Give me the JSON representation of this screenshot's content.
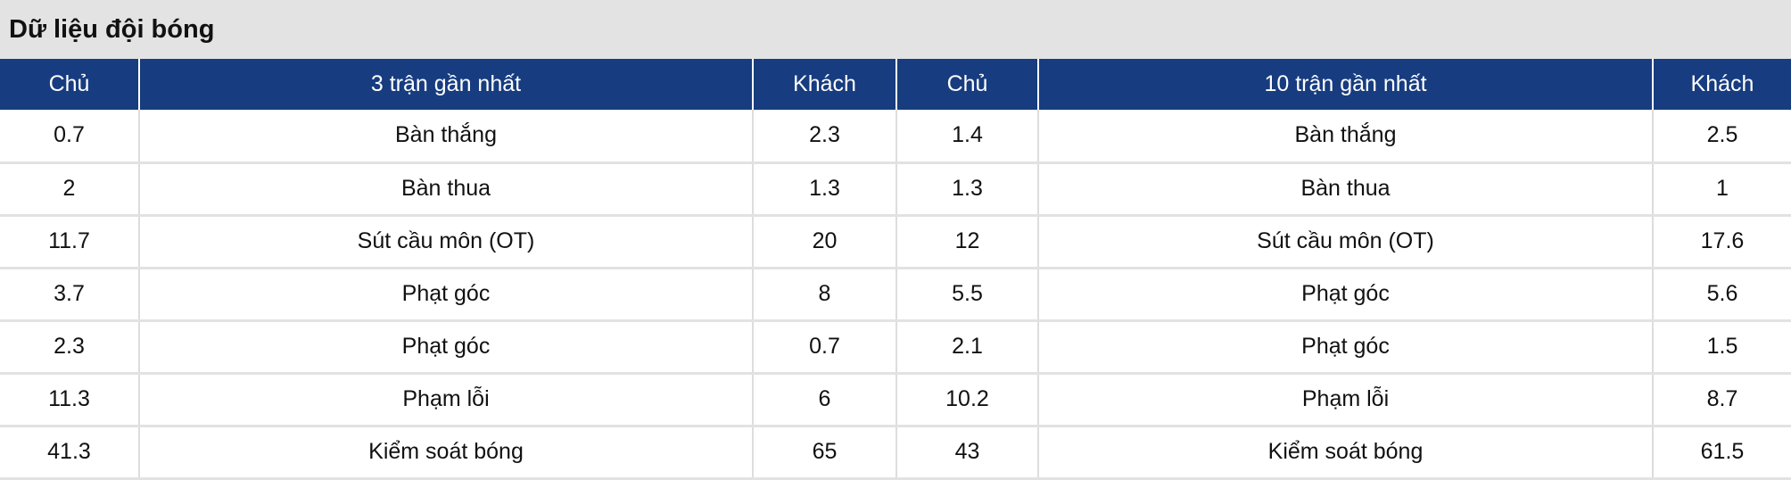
{
  "title": "Dữ liệu đội bóng",
  "headers": [
    "Chủ",
    "3 trận gần nhất",
    "Khách",
    "Chủ",
    "10 trận gần nhất",
    "Khách"
  ],
  "rows": [
    [
      "0.7",
      "Bàn thắng",
      "2.3",
      "1.4",
      "Bàn thắng",
      "2.5"
    ],
    [
      "2",
      "Bàn thua",
      "1.3",
      "1.3",
      "Bàn thua",
      "1"
    ],
    [
      "11.7",
      "Sút cầu môn (OT)",
      "20",
      "12",
      "Sút cầu môn (OT)",
      "17.6"
    ],
    [
      "3.7",
      "Phạt góc",
      "8",
      "5.5",
      "Phạt góc",
      "5.6"
    ],
    [
      "2.3",
      "Phạt góc",
      "0.7",
      "2.1",
      "Phạt góc",
      "1.5"
    ],
    [
      "11.3",
      "Phạm lỗi",
      "6",
      "10.2",
      "Phạm lỗi",
      "8.7"
    ],
    [
      "41.3",
      "Kiểm soát bóng",
      "65",
      "43",
      "Kiểm soát bóng",
      "61.5"
    ]
  ],
  "colors": {
    "header_bg": "#173c7f",
    "title_bg": "#e3e3e3"
  }
}
